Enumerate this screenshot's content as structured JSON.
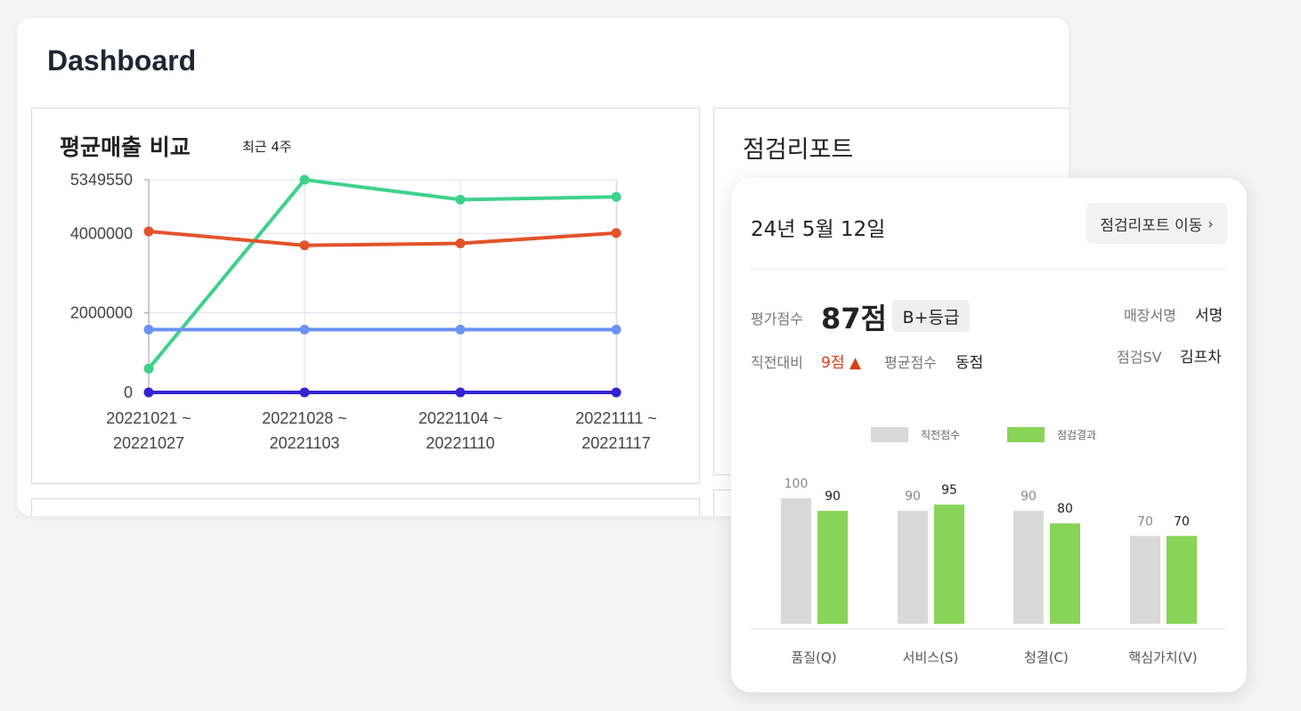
{
  "dashboard": {
    "title": "Dashboard"
  },
  "sales": {
    "title": "평균매출 비교",
    "subtitle": "최근 4주"
  },
  "report_panel": {
    "title": "점검리포트"
  },
  "card": {
    "date": "24년 5월 12일",
    "link_label": "점검리포트 이동",
    "score_label": "평가점수",
    "score": "87점",
    "grade": "B+등급",
    "store_label": "매장서명",
    "store_value": "서명",
    "prev_label": "직전대비",
    "prev_value": "9점 ▲",
    "avg_label": "평균점수",
    "avg_value": "동점",
    "sv_label": "점검SV",
    "sv_value": "김프차"
  },
  "colors": {
    "green_line": "#3fd18c",
    "orange_line": "#e2532a",
    "blue_line": "#6b93f5",
    "navy_line": "#3324d4",
    "prev_bar": "#d9d9d9",
    "result_bar": "#88d458",
    "accent_red": "#d8401a"
  },
  "chart_data": [
    {
      "type": "line",
      "categories": [
        "20221021 ~\n20221027",
        "20221028 ~\n20221103",
        "20221104 ~\n20221110",
        "20221111 ~\n20221117"
      ],
      "y_ticks": [
        "5349550",
        "4000000",
        "2000000",
        "0"
      ],
      "ylim": [
        0,
        5349550
      ],
      "grid": true,
      "series": [
        {
          "color": "#3fd18c",
          "values": [
            600000,
            5349550,
            4850000,
            4920000
          ]
        },
        {
          "color": "#e2532a",
          "values": [
            4050000,
            3700000,
            3750000,
            4010000
          ]
        },
        {
          "color": "#6b93f5",
          "values": [
            1580000,
            1580000,
            1580000,
            1580000
          ]
        },
        {
          "color": "#3324d4",
          "values": [
            0,
            0,
            0,
            0
          ]
        }
      ]
    },
    {
      "type": "bar",
      "categories": [
        "품질(Q)",
        "서비스(S)",
        "청결(C)",
        "핵심가치(V)"
      ],
      "ylim": [
        0,
        100
      ],
      "legend": "top",
      "series": [
        {
          "name": "직전점수",
          "color": "#d9d9d9",
          "values": [
            100,
            90,
            90,
            70
          ]
        },
        {
          "name": "점검결과",
          "color": "#88d458",
          "values": [
            90,
            95,
            80,
            70
          ]
        }
      ]
    }
  ]
}
